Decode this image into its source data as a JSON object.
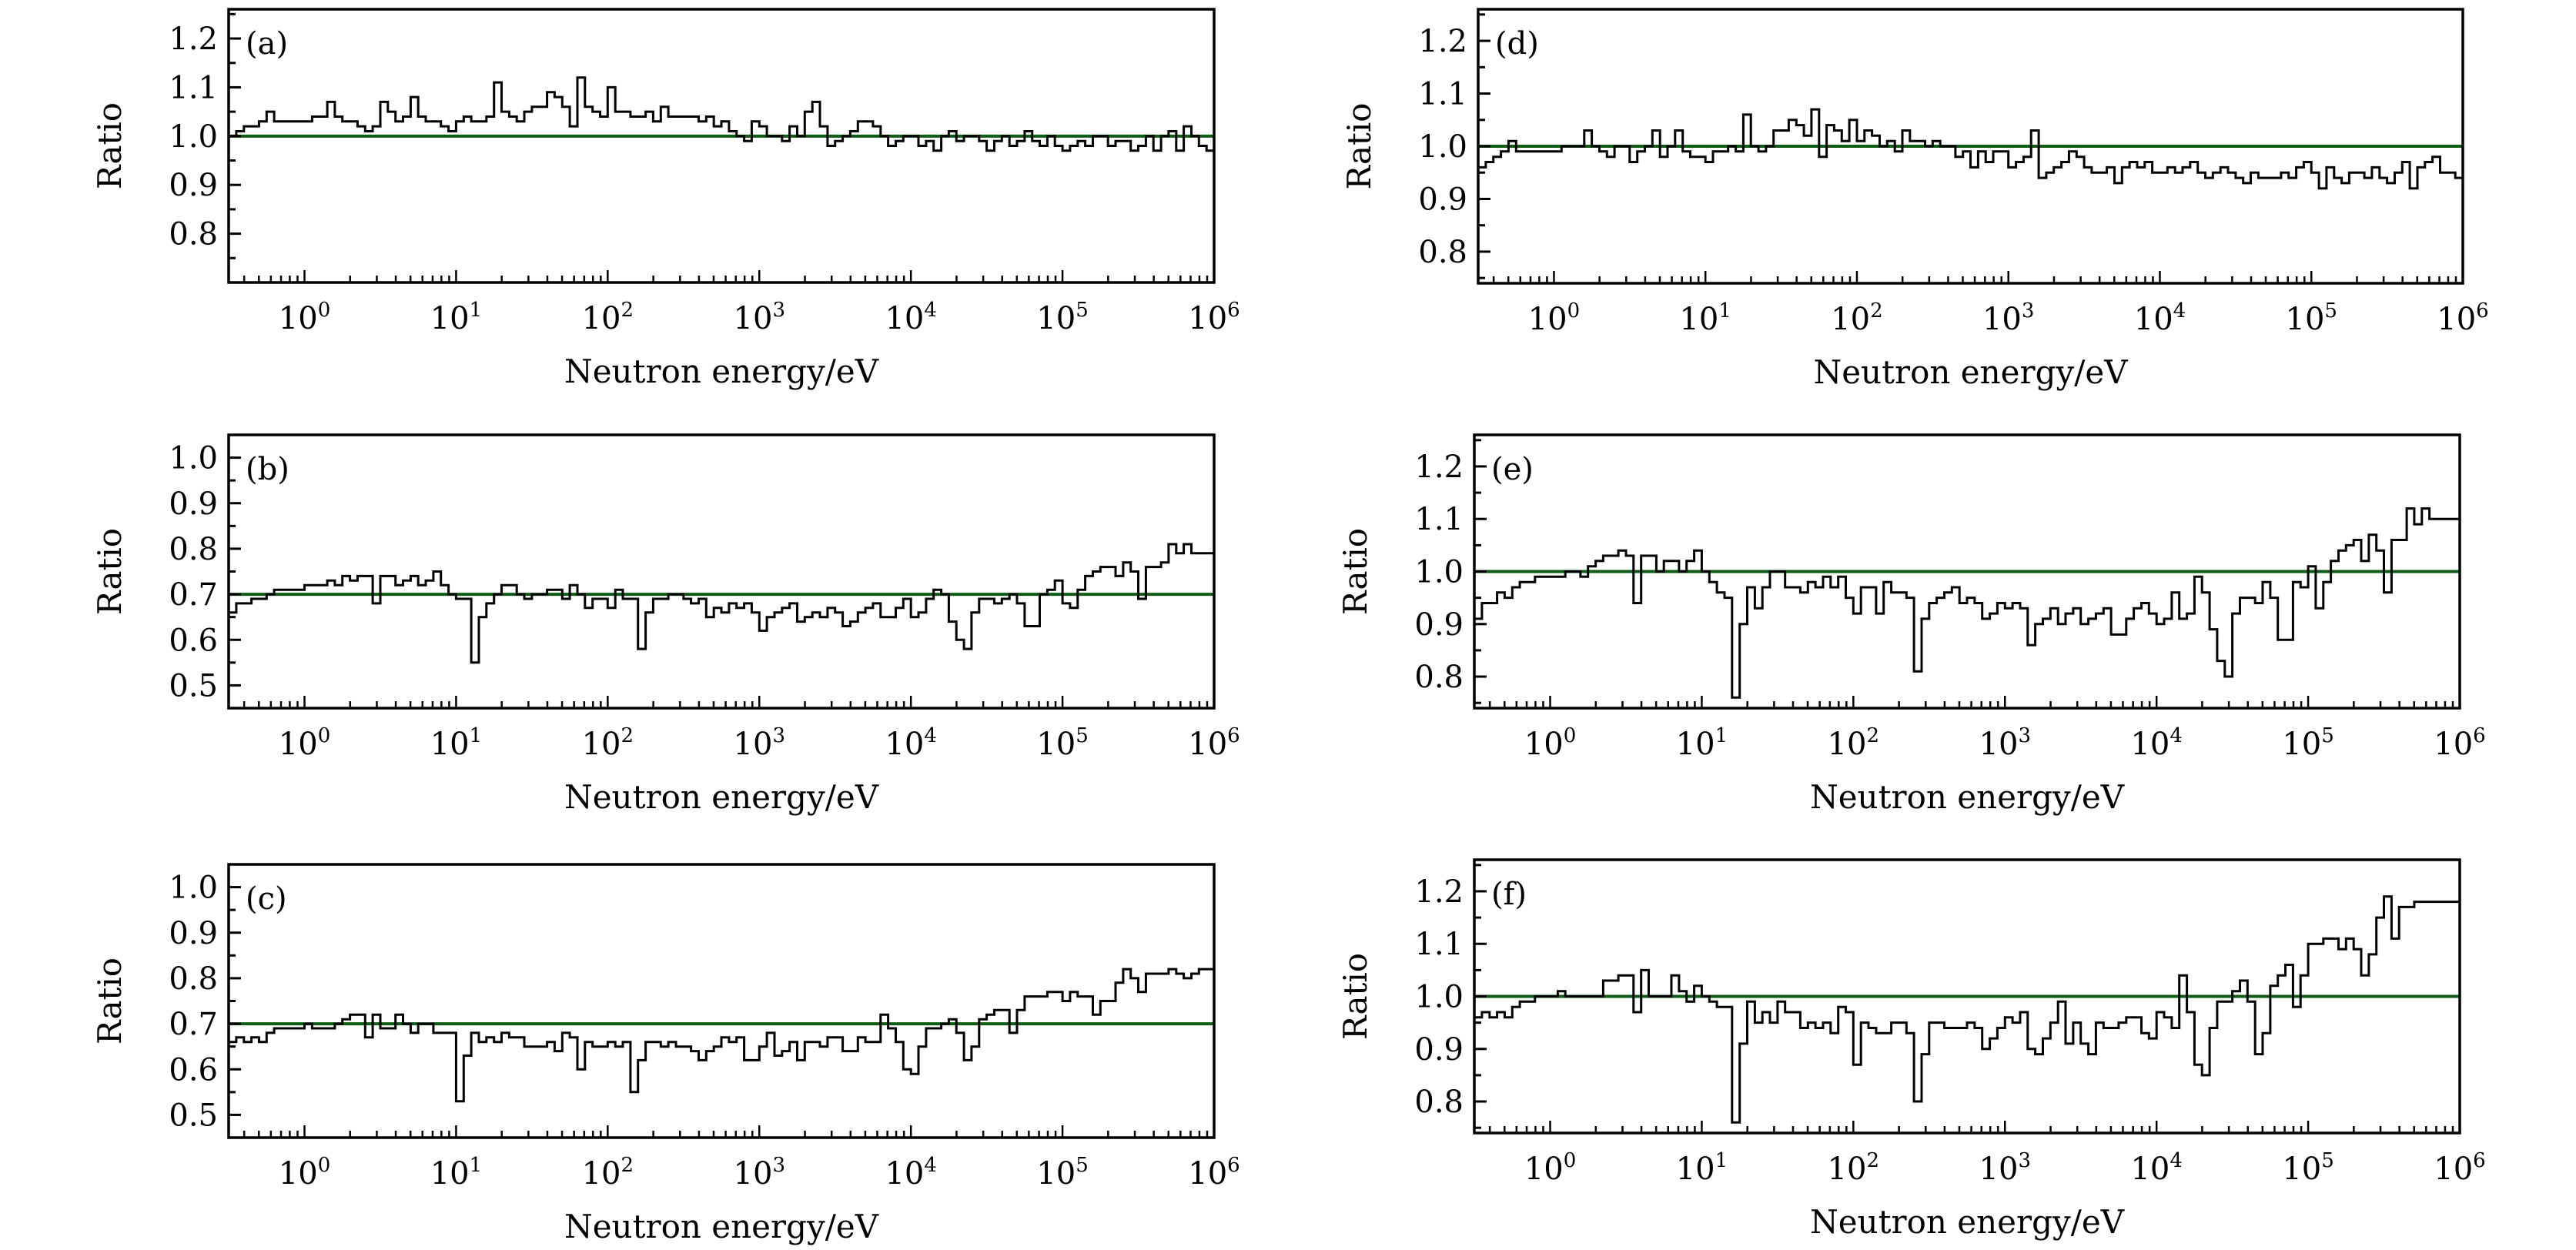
{
  "chart_data": [
    {
      "id": "a",
      "type": "line",
      "style": "step-histogram",
      "panel_label": "(a)",
      "xlabel": "Neutron energy/eV",
      "ylabel": "Ratio",
      "xscale": "log",
      "xlim": [
        0.316,
        1000000
      ],
      "ylim": [
        0.7,
        1.26
      ],
      "yticks": [
        "0.8",
        "0.9",
        "1.0",
        "1.1",
        "1.2"
      ],
      "ytick_values": [
        0.8,
        0.9,
        1.0,
        1.1,
        1.2
      ],
      "xticks": [
        "10^0",
        "10^1",
        "10^2",
        "10^3",
        "10^4",
        "10^5",
        "10^6"
      ],
      "xtick_exponents": [
        0,
        1,
        2,
        3,
        4,
        5,
        6
      ],
      "reference_line": 1.0,
      "reference_color": "#0f5c14",
      "log10_x_start": -0.5,
      "bins_per_decade": 20,
      "values": [
        1.0,
        1.01,
        1.02,
        1.02,
        1.03,
        1.05,
        1.03,
        1.03,
        1.03,
        1.03,
        1.03,
        1.04,
        1.04,
        1.07,
        1.04,
        1.03,
        1.03,
        1.02,
        1.01,
        1.02,
        1.07,
        1.05,
        1.03,
        1.04,
        1.08,
        1.04,
        1.03,
        1.03,
        1.02,
        1.01,
        1.03,
        1.04,
        1.03,
        1.03,
        1.04,
        1.11,
        1.05,
        1.04,
        1.03,
        1.05,
        1.06,
        1.06,
        1.09,
        1.08,
        1.06,
        1.02,
        1.12,
        1.06,
        1.05,
        1.04,
        1.1,
        1.05,
        1.05,
        1.04,
        1.04,
        1.05,
        1.03,
        1.06,
        1.04,
        1.04,
        1.04,
        1.04,
        1.03,
        1.04,
        1.02,
        1.03,
        1.01,
        1.0,
        0.99,
        1.03,
        1.02,
        1.0,
        1.0,
        0.99,
        1.02,
        1.0,
        1.05,
        1.07,
        1.02,
        0.98,
        0.99,
        1.0,
        1.01,
        1.03,
        1.03,
        1.02,
        1.0,
        0.98,
        0.99,
        1.0,
        1.0,
        0.98,
        0.99,
        0.97,
        1.0,
        1.01,
        0.99,
        1.0,
        1.0,
        0.99,
        0.97,
        0.99,
        1.0,
        0.98,
        0.99,
        1.01,
        0.99,
        0.98,
        1.0,
        0.98,
        0.97,
        0.98,
        0.99,
        0.98,
        1.0,
        1.0,
        0.98,
        0.99,
        0.99,
        0.97,
        0.98,
        1.0,
        0.97,
        1.0,
        1.01,
        0.97,
        1.02,
        1.0,
        0.98,
        0.97
      ]
    },
    {
      "id": "b",
      "type": "line",
      "style": "step-histogram",
      "panel_label": "(b)",
      "xlabel": "Neutron energy/eV",
      "ylabel": "Ratio",
      "xscale": "log",
      "xlim": [
        0.316,
        1000000
      ],
      "ylim": [
        0.45,
        1.05
      ],
      "yticks": [
        "0.5",
        "0.6",
        "0.7",
        "0.8",
        "0.9",
        "1.0"
      ],
      "ytick_values": [
        0.5,
        0.6,
        0.7,
        0.8,
        0.9,
        1.0
      ],
      "xticks": [
        "10^0",
        "10^1",
        "10^2",
        "10^3",
        "10^4",
        "10^5",
        "10^6"
      ],
      "xtick_exponents": [
        0,
        1,
        2,
        3,
        4,
        5,
        6
      ],
      "reference_line": 0.7,
      "reference_color": "#0f5c14",
      "log10_x_start": -0.5,
      "bins_per_decade": 20,
      "values": [
        0.66,
        0.68,
        0.68,
        0.69,
        0.69,
        0.7,
        0.71,
        0.71,
        0.71,
        0.71,
        0.72,
        0.72,
        0.72,
        0.73,
        0.72,
        0.74,
        0.73,
        0.74,
        0.74,
        0.68,
        0.74,
        0.74,
        0.72,
        0.73,
        0.74,
        0.72,
        0.73,
        0.75,
        0.72,
        0.7,
        0.69,
        0.69,
        0.55,
        0.65,
        0.68,
        0.7,
        0.72,
        0.72,
        0.7,
        0.69,
        0.7,
        0.7,
        0.71,
        0.71,
        0.69,
        0.72,
        0.7,
        0.67,
        0.69,
        0.69,
        0.67,
        0.71,
        0.69,
        0.69,
        0.58,
        0.66,
        0.69,
        0.69,
        0.7,
        0.7,
        0.69,
        0.68,
        0.69,
        0.65,
        0.67,
        0.66,
        0.68,
        0.67,
        0.68,
        0.66,
        0.62,
        0.65,
        0.66,
        0.67,
        0.68,
        0.64,
        0.65,
        0.66,
        0.65,
        0.67,
        0.66,
        0.63,
        0.64,
        0.66,
        0.67,
        0.68,
        0.65,
        0.65,
        0.67,
        0.69,
        0.65,
        0.66,
        0.69,
        0.71,
        0.7,
        0.64,
        0.6,
        0.58,
        0.66,
        0.69,
        0.69,
        0.68,
        0.69,
        0.7,
        0.68,
        0.63,
        0.63,
        0.7,
        0.71,
        0.73,
        0.68,
        0.67,
        0.71,
        0.74,
        0.75,
        0.76,
        0.76,
        0.74,
        0.77,
        0.75,
        0.69,
        0.76,
        0.76,
        0.77,
        0.81,
        0.79,
        0.81,
        0.79,
        0.79,
        0.79
      ]
    },
    {
      "id": "c",
      "type": "line",
      "style": "step-histogram",
      "panel_label": "(c)",
      "xlabel": "Neutron energy/eV",
      "ylabel": "Ratio",
      "xscale": "log",
      "xlim": [
        0.316,
        1000000
      ],
      "ylim": [
        0.45,
        1.05
      ],
      "yticks": [
        "0.5",
        "0.6",
        "0.7",
        "0.8",
        "0.9",
        "1.0"
      ],
      "ytick_values": [
        0.5,
        0.6,
        0.7,
        0.8,
        0.9,
        1.0
      ],
      "xticks": [
        "10^0",
        "10^1",
        "10^2",
        "10^3",
        "10^4",
        "10^5",
        "10^6"
      ],
      "xtick_exponents": [
        0,
        1,
        2,
        3,
        4,
        5,
        6
      ],
      "reference_line": 0.7,
      "reference_color": "#0f5c14",
      "log10_x_start": -0.5,
      "bins_per_decade": 20,
      "values": [
        0.66,
        0.67,
        0.66,
        0.67,
        0.66,
        0.68,
        0.69,
        0.69,
        0.69,
        0.69,
        0.7,
        0.69,
        0.69,
        0.69,
        0.7,
        0.71,
        0.72,
        0.72,
        0.67,
        0.72,
        0.69,
        0.69,
        0.72,
        0.7,
        0.68,
        0.7,
        0.7,
        0.68,
        0.68,
        0.68,
        0.53,
        0.63,
        0.68,
        0.66,
        0.67,
        0.66,
        0.68,
        0.67,
        0.67,
        0.65,
        0.65,
        0.65,
        0.66,
        0.64,
        0.68,
        0.67,
        0.6,
        0.66,
        0.65,
        0.65,
        0.66,
        0.65,
        0.66,
        0.55,
        0.62,
        0.66,
        0.66,
        0.65,
        0.66,
        0.65,
        0.65,
        0.64,
        0.62,
        0.64,
        0.65,
        0.67,
        0.66,
        0.67,
        0.62,
        0.62,
        0.65,
        0.68,
        0.63,
        0.64,
        0.66,
        0.62,
        0.66,
        0.66,
        0.65,
        0.67,
        0.67,
        0.64,
        0.64,
        0.67,
        0.66,
        0.66,
        0.72,
        0.69,
        0.66,
        0.6,
        0.59,
        0.65,
        0.69,
        0.69,
        0.7,
        0.71,
        0.68,
        0.62,
        0.65,
        0.71,
        0.72,
        0.73,
        0.73,
        0.68,
        0.73,
        0.76,
        0.76,
        0.76,
        0.77,
        0.77,
        0.75,
        0.77,
        0.76,
        0.76,
        0.72,
        0.75,
        0.75,
        0.79,
        0.82,
        0.8,
        0.77,
        0.81,
        0.81,
        0.81,
        0.82,
        0.81,
        0.8,
        0.81,
        0.82,
        0.82
      ]
    },
    {
      "id": "d",
      "type": "line",
      "style": "step-histogram",
      "panel_label": "(d)",
      "xlabel": "Neutron energy/eV",
      "ylabel": "Ratio",
      "xscale": "log",
      "xlim": [
        0.316,
        1000000
      ],
      "ylim": [
        0.74,
        1.26
      ],
      "yticks": [
        "0.8",
        "0.9",
        "1.0",
        "1.1",
        "1.2"
      ],
      "ytick_values": [
        0.8,
        0.9,
        1.0,
        1.1,
        1.2
      ],
      "xticks": [
        "10^0",
        "10^1",
        "10^2",
        "10^3",
        "10^4",
        "10^5",
        "10^6"
      ],
      "xtick_exponents": [
        0,
        1,
        2,
        3,
        4,
        5,
        6
      ],
      "reference_line": 1.0,
      "reference_color": "#0f5c14",
      "log10_x_start": -0.5,
      "bins_per_decade": 20,
      "values": [
        0.96,
        0.97,
        0.98,
        0.99,
        1.01,
        0.99,
        0.99,
        0.99,
        0.99,
        0.99,
        0.99,
        1.0,
        1.0,
        1.0,
        1.03,
        1.0,
        0.99,
        0.98,
        1.0,
        1.0,
        0.97,
        0.99,
        1.0,
        1.03,
        0.98,
        1.0,
        1.03,
        0.99,
        0.98,
        0.98,
        0.97,
        0.99,
        0.99,
        1.0,
        0.99,
        1.06,
        1.0,
        0.99,
        1.0,
        1.03,
        1.03,
        1.05,
        1.04,
        1.02,
        1.07,
        0.98,
        1.04,
        1.03,
        1.01,
        1.05,
        1.01,
        1.03,
        1.02,
        1.0,
        1.01,
        0.99,
        1.03,
        1.01,
        1.01,
        1.0,
        1.01,
        1.0,
        1.0,
        0.98,
        0.99,
        0.96,
        0.99,
        0.97,
        0.99,
        0.99,
        0.96,
        0.97,
        0.98,
        1.03,
        0.94,
        0.95,
        0.96,
        0.97,
        0.99,
        0.98,
        0.96,
        0.95,
        0.95,
        0.96,
        0.93,
        0.96,
        0.97,
        0.96,
        0.97,
        0.95,
        0.95,
        0.96,
        0.95,
        0.96,
        0.97,
        0.95,
        0.94,
        0.95,
        0.96,
        0.95,
        0.94,
        0.93,
        0.95,
        0.94,
        0.94,
        0.94,
        0.95,
        0.94,
        0.96,
        0.97,
        0.95,
        0.92,
        0.96,
        0.94,
        0.93,
        0.95,
        0.95,
        0.94,
        0.96,
        0.94,
        0.93,
        0.95,
        0.97,
        0.92,
        0.96,
        0.97,
        0.98,
        0.95,
        0.95,
        0.94
      ]
    },
    {
      "id": "e",
      "type": "line",
      "style": "step-histogram",
      "panel_label": "(e)",
      "xlabel": "Neutron energy/eV",
      "ylabel": "Ratio",
      "xscale": "log",
      "xlim": [
        0.316,
        1000000
      ],
      "ylim": [
        0.74,
        1.26
      ],
      "yticks": [
        "0.8",
        "0.9",
        "1.0",
        "1.1",
        "1.2"
      ],
      "ytick_values": [
        0.8,
        0.9,
        1.0,
        1.1,
        1.2
      ],
      "xticks": [
        "10^0",
        "10^1",
        "10^2",
        "10^3",
        "10^4",
        "10^5",
        "10^6"
      ],
      "xtick_exponents": [
        0,
        1,
        2,
        3,
        4,
        5,
        6
      ],
      "reference_line": 1.0,
      "reference_color": "#0f5c14",
      "log10_x_start": -0.5,
      "bins_per_decade": 20,
      "values": [
        0.91,
        0.94,
        0.94,
        0.96,
        0.95,
        0.97,
        0.98,
        0.98,
        0.99,
        0.99,
        0.99,
        0.99,
        1.0,
        1.0,
        0.99,
        1.01,
        1.02,
        1.03,
        1.03,
        1.04,
        1.03,
        0.94,
        1.03,
        1.03,
        1.0,
        1.02,
        1.02,
        1.0,
        1.02,
        1.04,
        1.0,
        0.98,
        0.96,
        0.95,
        0.76,
        0.9,
        0.97,
        0.93,
        0.97,
        1.0,
        1.0,
        0.97,
        0.97,
        0.96,
        0.98,
        0.97,
        0.99,
        0.97,
        0.99,
        0.95,
        0.92,
        0.97,
        0.97,
        0.92,
        0.98,
        0.96,
        0.96,
        0.95,
        0.81,
        0.91,
        0.94,
        0.95,
        0.96,
        0.97,
        0.94,
        0.95,
        0.94,
        0.91,
        0.92,
        0.94,
        0.93,
        0.94,
        0.93,
        0.86,
        0.9,
        0.91,
        0.93,
        0.9,
        0.92,
        0.93,
        0.9,
        0.91,
        0.92,
        0.93,
        0.88,
        0.88,
        0.91,
        0.93,
        0.94,
        0.92,
        0.9,
        0.91,
        0.96,
        0.91,
        0.92,
        0.99,
        0.96,
        0.89,
        0.83,
        0.8,
        0.92,
        0.95,
        0.95,
        0.94,
        0.98,
        0.95,
        0.87,
        0.87,
        0.98,
        0.97,
        1.01,
        0.93,
        0.98,
        1.02,
        1.04,
        1.05,
        1.06,
        1.02,
        1.07,
        1.04,
        0.96,
        1.06,
        1.06,
        1.12,
        1.09,
        1.12,
        1.1,
        1.1,
        1.1,
        1.1
      ]
    },
    {
      "id": "f",
      "type": "line",
      "style": "step-histogram",
      "panel_label": "(f)",
      "xlabel": "Neutron energy/eV",
      "ylabel": "Ratio",
      "xscale": "log",
      "xlim": [
        0.316,
        1000000
      ],
      "ylim": [
        0.74,
        1.26
      ],
      "yticks": [
        "0.8",
        "0.9",
        "1.0",
        "1.1",
        "1.2"
      ],
      "ytick_values": [
        0.8,
        0.9,
        1.0,
        1.1,
        1.2
      ],
      "xticks": [
        "10^0",
        "10^1",
        "10^2",
        "10^3",
        "10^4",
        "10^5",
        "10^6"
      ],
      "xtick_exponents": [
        0,
        1,
        2,
        3,
        4,
        5,
        6
      ],
      "reference_line": 1.0,
      "reference_color": "#0f5c14",
      "log10_x_start": -0.5,
      "bins_per_decade": 20,
      "values": [
        0.96,
        0.97,
        0.96,
        0.97,
        0.96,
        0.98,
        0.99,
        0.99,
        1.0,
        1.0,
        1.0,
        1.01,
        1.0,
        1.0,
        1.0,
        1.0,
        1.0,
        1.03,
        1.03,
        1.04,
        1.04,
        0.97,
        1.05,
        1.0,
        1.0,
        1.0,
        1.04,
        1.01,
        0.99,
        1.02,
        1.0,
        0.99,
        0.98,
        0.98,
        0.76,
        0.91,
        0.99,
        0.95,
        0.97,
        0.95,
        0.99,
        0.97,
        0.97,
        0.94,
        0.95,
        0.94,
        0.95,
        0.93,
        0.98,
        0.97,
        0.87,
        0.95,
        0.94,
        0.93,
        0.93,
        0.95,
        0.95,
        0.93,
        0.8,
        0.89,
        0.95,
        0.95,
        0.94,
        0.94,
        0.94,
        0.95,
        0.94,
        0.9,
        0.92,
        0.94,
        0.96,
        0.95,
        0.97,
        0.9,
        0.89,
        0.92,
        0.95,
        0.99,
        0.91,
        0.95,
        0.91,
        0.89,
        0.95,
        0.94,
        0.94,
        0.95,
        0.96,
        0.96,
        0.93,
        0.92,
        0.97,
        0.96,
        0.94,
        1.04,
        0.97,
        0.87,
        0.85,
        0.94,
        0.99,
        0.99,
        1.01,
        1.03,
        0.99,
        0.89,
        0.93,
        1.02,
        1.04,
        1.06,
        0.98,
        1.04,
        1.1,
        1.1,
        1.11,
        1.11,
        1.09,
        1.11,
        1.09,
        1.04,
        1.08,
        1.15,
        1.19,
        1.11,
        1.17,
        1.17,
        1.18,
        1.18,
        1.18,
        1.18,
        1.18,
        1.18
      ]
    }
  ]
}
